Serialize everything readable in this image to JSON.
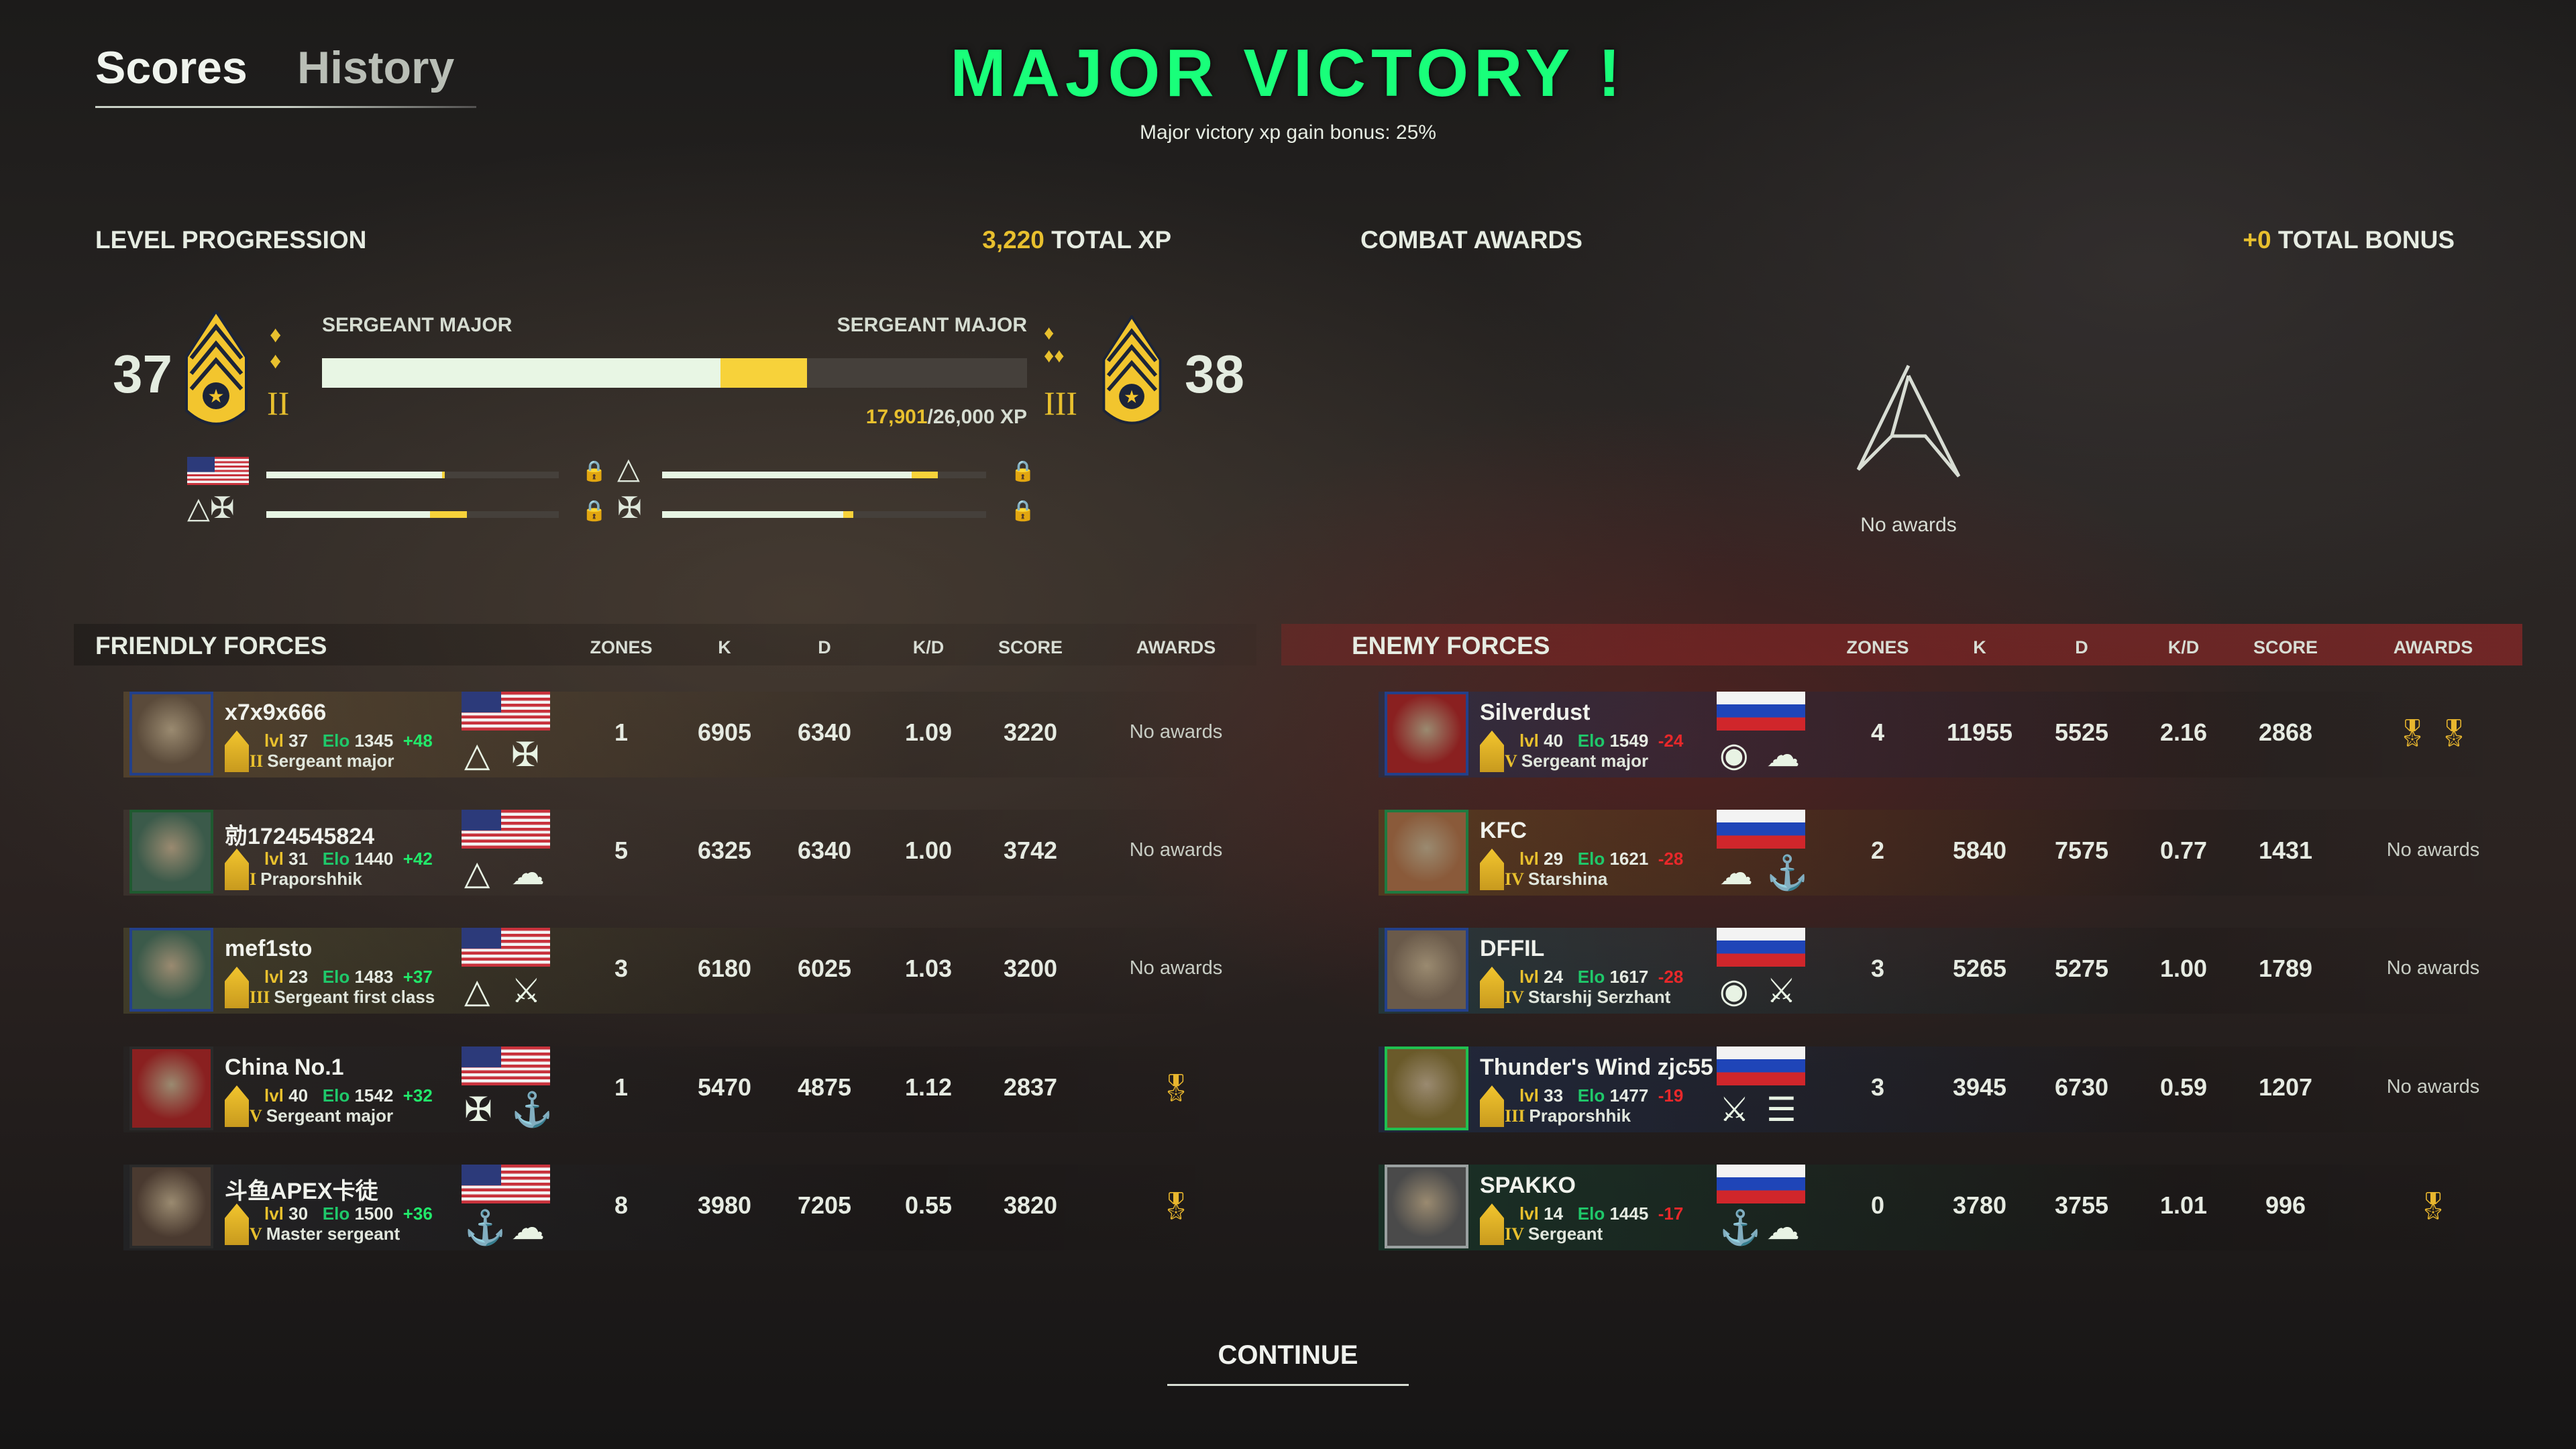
{
  "tabs": {
    "scores": "Scores",
    "history": "History"
  },
  "header": {
    "title": "MAJOR VICTORY !",
    "subtitle": "Major victory xp gain bonus: 25%"
  },
  "level": {
    "heading": "LEVEL PROGRESSION",
    "total_xp_value": "3,220",
    "total_xp_label": "TOTAL XP",
    "current_level": "37",
    "next_level": "38",
    "current_rank": "SERGEANT MAJOR",
    "next_rank": "SERGEANT MAJOR",
    "current_tier": "II",
    "next_tier": "III",
    "xp_current": "17,901",
    "xp_needed": "/26,000 XP",
    "progress_before": 0.565,
    "progress_after": 0.688,
    "unlock_bars": [
      {
        "icon": "us-flag-icon",
        "before": 0.6,
        "after": 0.61
      },
      {
        "icon": "engineer-badge-icon",
        "before": 0.77,
        "after": 0.85
      },
      {
        "icon": "engineer-cavalry-badge-icon",
        "before": 0.56,
        "after": 0.685
      },
      {
        "icon": "cavalry-badge-icon",
        "before": 0.56,
        "after": 0.59
      }
    ]
  },
  "awards": {
    "heading": "COMBAT AWARDS",
    "bonus_value": "+0",
    "bonus_label": "TOTAL BONUS",
    "empty_text": "No awards"
  },
  "columns": {
    "zones": "ZONES",
    "k": "K",
    "d": "D",
    "kd": "K/D",
    "score": "SCORE",
    "awards": "AWARDS"
  },
  "colors": {
    "accent_green": "#19ff7a",
    "gold": "#e8c02e",
    "elo_green": "#1fc86a",
    "gain": "#22e86a",
    "loss": "#e8282a"
  },
  "friendly": {
    "heading": "FRIENDLY FORCES",
    "players": [
      {
        "name": "x7x9x666",
        "lvl_label": "lvl",
        "lvl": "37",
        "elo_label": "Elo",
        "elo": "1345",
        "delta": "+48",
        "tier": "II",
        "rank": "Sergeant major",
        "zones": "1",
        "k": "6905",
        "d": "6340",
        "kd": "1.09",
        "score": "3220",
        "awards": "No awards",
        "emblems": [
          "△",
          "✠"
        ]
      },
      {
        "name": "勍1724545824",
        "lvl_label": "lvl",
        "lvl": "31",
        "elo_label": "Elo",
        "elo": "1440",
        "delta": "+42",
        "tier": "I",
        "rank": "Praporshhik",
        "zones": "5",
        "k": "6325",
        "d": "6340",
        "kd": "1.00",
        "score": "3742",
        "awards": "No awards",
        "emblems": [
          "△",
          "☁"
        ]
      },
      {
        "name": "mef1sto",
        "lvl_label": "lvl",
        "lvl": "23",
        "elo_label": "Elo",
        "elo": "1483",
        "delta": "+37",
        "tier": "III",
        "rank": "Sergeant first class",
        "zones": "3",
        "k": "6180",
        "d": "6025",
        "kd": "1.03",
        "score": "3200",
        "awards": "No awards",
        "emblems": [
          "△",
          "⚔"
        ]
      },
      {
        "name": "China No.1",
        "lvl_label": "lvl",
        "lvl": "40",
        "elo_label": "Elo",
        "elo": "1542",
        "delta": "+32",
        "tier": "V",
        "rank": "Sergeant major",
        "zones": "1",
        "k": "5470",
        "d": "4875",
        "kd": "1.12",
        "score": "2837",
        "awards": "",
        "award_icon": "medal-icon",
        "emblems": [
          "✠",
          "⚓"
        ]
      },
      {
        "name": "斗鱼APEX卡徒",
        "lvl_label": "lvl",
        "lvl": "30",
        "elo_label": "Elo",
        "elo": "1500",
        "delta": "+36",
        "tier": "V",
        "rank": "Master sergeant",
        "zones": "8",
        "k": "3980",
        "d": "7205",
        "kd": "0.55",
        "score": "3820",
        "awards": "",
        "award_icon": "medal-icon",
        "emblems": [
          "⚓",
          "☁"
        ]
      }
    ]
  },
  "enemy": {
    "heading": "ENEMY FORCES",
    "players": [
      {
        "name": "Silverdust",
        "lvl_label": "lvl",
        "lvl": "40",
        "elo_label": "Elo",
        "elo": "1549",
        "delta": "-24",
        "tier": "V",
        "rank": "Sergeant major",
        "zones": "4",
        "k": "11955",
        "d": "5525",
        "kd": "2.16",
        "score": "2868",
        "awards": "",
        "award_icon": "medal-pair-icon",
        "emblems": [
          "◉",
          "☁"
        ]
      },
      {
        "name": "KFC",
        "lvl_label": "lvl",
        "lvl": "29",
        "elo_label": "Elo",
        "elo": "1621",
        "delta": "-28",
        "tier": "IV",
        "rank": "Starshina",
        "zones": "2",
        "k": "5840",
        "d": "7575",
        "kd": "0.77",
        "score": "1431",
        "awards": "No awards",
        "emblems": [
          "☁",
          "⚓"
        ]
      },
      {
        "name": "DFFIL",
        "lvl_label": "lvl",
        "lvl": "24",
        "elo_label": "Elo",
        "elo": "1617",
        "delta": "-28",
        "tier": "IV",
        "rank": "Starshij Serzhant",
        "zones": "3",
        "k": "5265",
        "d": "5275",
        "kd": "1.00",
        "score": "1789",
        "awards": "No awards",
        "emblems": [
          "◉",
          "⚔"
        ]
      },
      {
        "name": "Thunder's Wind zjc55",
        "lvl_label": "lvl",
        "lvl": "33",
        "elo_label": "Elo",
        "elo": "1477",
        "delta": "-19",
        "tier": "III",
        "rank": "Praporshhik",
        "zones": "3",
        "k": "3945",
        "d": "6730",
        "kd": "0.59",
        "score": "1207",
        "awards": "No awards",
        "emblems": [
          "⚔",
          "☰"
        ]
      },
      {
        "name": "SPAKKO",
        "lvl_label": "lvl",
        "lvl": "14",
        "elo_label": "Elo",
        "elo": "1445",
        "delta": "-17",
        "tier": "IV",
        "rank": "Sergeant",
        "zones": "0",
        "k": "3780",
        "d": "3755",
        "kd": "1.01",
        "score": "996",
        "awards": "",
        "award_icon": "medal-icon",
        "emblems": [
          "⚓",
          "☁"
        ]
      }
    ]
  },
  "continue_label": "CONTINUE"
}
